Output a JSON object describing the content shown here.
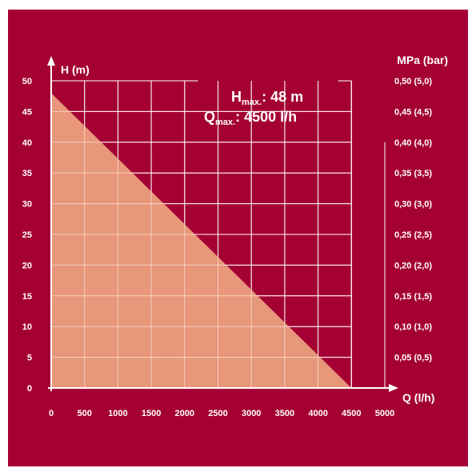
{
  "chart_data": {
    "type": "area",
    "xlabel": "Q (l/h)",
    "ylabel": "H (m)",
    "y2label": "MPa (bar)",
    "xlim": [
      0,
      5000
    ],
    "ylim": [
      0,
      50
    ],
    "x_ticks": [
      "0",
      "500",
      "1000",
      "1500",
      "2000",
      "2500",
      "3000",
      "3500",
      "4000",
      "4500",
      "5000"
    ],
    "y_ticks": [
      "0",
      "5",
      "10",
      "15",
      "20",
      "25",
      "30",
      "35",
      "40",
      "45",
      "50"
    ],
    "y2_ticks": [
      "0,05 (0,5)",
      "0,10 (1,0)",
      "0,15 (1,5)",
      "0,20 (2,0)",
      "0,25 (2,5)",
      "0,30 (3,0)",
      "0,35 (3,5)",
      "0,40 (4,0)",
      "0,45 (4,5)",
      "0,50 (5,0)"
    ],
    "series": [
      {
        "x": [
          0,
          4500
        ],
        "y": [
          48,
          0
        ]
      }
    ],
    "grid": true,
    "annotations": [
      {
        "main": "H",
        "sub": "max.",
        "value": ": 48 m"
      },
      {
        "main": "Q",
        "sub": "max.",
        "value": ": 4500 l/h"
      }
    ],
    "colors": {
      "background": "#a50034",
      "fill": "#e8977a",
      "grid": "#ffffff",
      "text": "#ffffff"
    }
  }
}
